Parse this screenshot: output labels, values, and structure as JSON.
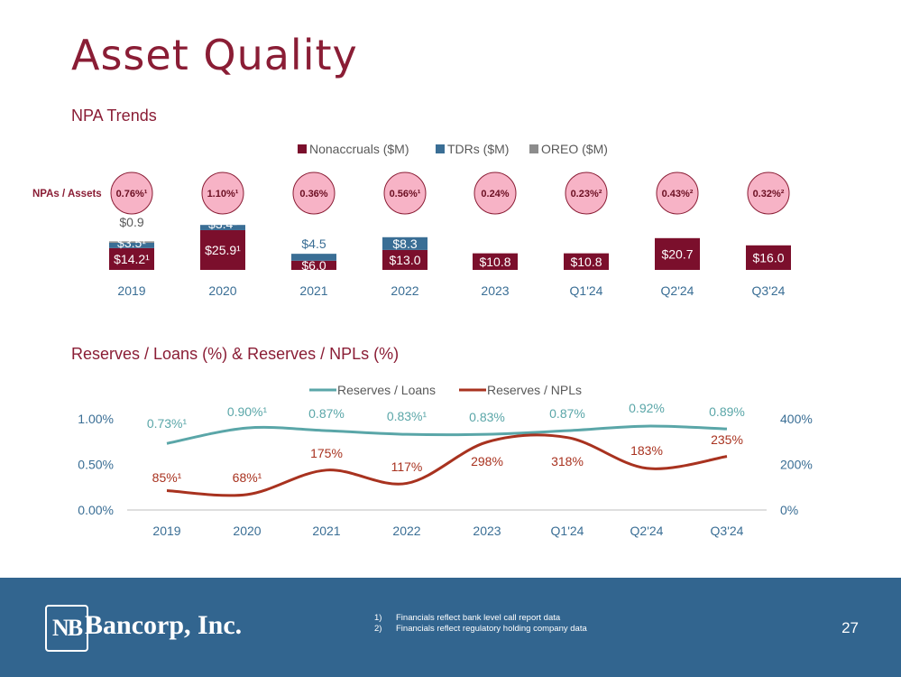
{
  "title": "Asset Quality",
  "npa_section_title": "NPA Trends",
  "reserves_section_title": "Reserves / Loans (%) & Reserves / NPLs (%)",
  "colors": {
    "nonaccruals": "#7b0f2c",
    "tdrs": "#3a6e95",
    "oreo": "#8c8c8c",
    "reserves_loans": "#5aa6a8",
    "reserves_npls": "#a8321f",
    "circle_fill": "#f7b3c6",
    "footer": "#32658f",
    "brand": "#8a1d35"
  },
  "chart_data": [
    {
      "type": "bar",
      "stacked": true,
      "categories": [
        "2019",
        "2020",
        "2021",
        "2022",
        "2023",
        "Q1'24",
        "Q2'24",
        "Q3'24"
      ],
      "series": [
        {
          "name": "Nonaccruals ($M)",
          "values": [
            14.2,
            25.9,
            6.0,
            13.0,
            10.8,
            10.8,
            20.7,
            16.0
          ],
          "labels": [
            "$14.2¹",
            "$25.9¹",
            "$6.0",
            "$13.0",
            "$10.8",
            "$10.8",
            "$20.7",
            "$16.0"
          ]
        },
        {
          "name": "TDRs ($M)",
          "values": [
            3.5,
            3.4,
            4.5,
            8.3,
            0,
            0,
            0,
            0
          ],
          "labels": [
            "$3.5¹",
            "$3.4¹",
            "$4.5",
            "$8.3",
            "",
            "",
            "",
            ""
          ]
        },
        {
          "name": "OREO ($M)",
          "values": [
            0.9,
            0,
            0,
            0,
            0,
            0,
            0,
            0
          ],
          "labels": [
            "$0.9",
            "",
            "",
            "",
            "",
            "",
            "",
            ""
          ]
        }
      ],
      "legend": [
        "Nonaccruals ($M)",
        "TDRs ($M)",
        "OREO ($M)"
      ],
      "legend_position": "top-center",
      "npa_label": "NPAs / Assets",
      "npa_assets": [
        "0.76%¹",
        "1.10%¹",
        "0.36%",
        "0.56%¹",
        "0.24%",
        "0.23%²",
        "0.43%²",
        "0.32%²"
      ]
    },
    {
      "type": "line",
      "categories": [
        "2019",
        "2020",
        "2021",
        "2022",
        "2023",
        "Q1'24",
        "Q2'24",
        "Q3'24"
      ],
      "series": [
        {
          "name": "Reserves / Loans",
          "axis": "left",
          "values": [
            0.73,
            0.9,
            0.87,
            0.83,
            0.83,
            0.87,
            0.92,
            0.89
          ],
          "labels": [
            "0.73%¹",
            "0.90%¹",
            "0.87%",
            "0.83%¹",
            "0.83%",
            "0.87%",
            "0.92%",
            "0.89%"
          ]
        },
        {
          "name": "Reserves / NPLs",
          "axis": "right",
          "values": [
            85,
            68,
            175,
            117,
            298,
            318,
            183,
            235
          ],
          "labels": [
            "85%¹",
            "68%¹",
            "175%",
            "117%",
            "298%",
            "318%",
            "183%",
            "235%"
          ]
        }
      ],
      "left_axis": {
        "ticks": [
          "0.00%",
          "0.50%",
          "1.00%"
        ],
        "range": [
          0,
          1.0
        ]
      },
      "right_axis": {
        "ticks": [
          "0%",
          "200%",
          "400%"
        ],
        "range": [
          0,
          400
        ]
      },
      "legend_position": "top-center"
    }
  ],
  "footer": {
    "logo_mark": "NB",
    "logo_text": "Bancorp, Inc.",
    "notes": [
      {
        "num": "1)",
        "text": "Financials reflect bank level call report data"
      },
      {
        "num": "2)",
        "text": "Financials reflect regulatory holding company data"
      }
    ],
    "page_number": "27"
  }
}
